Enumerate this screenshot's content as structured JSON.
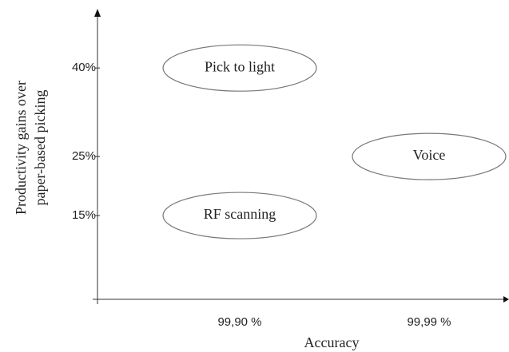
{
  "chart_data": {
    "type": "scatter",
    "x_label": "Accuracy",
    "y_label": [
      "Productivity gains over",
      "paper-based picking"
    ],
    "categories": [
      "99,90 %",
      "99,99 %"
    ],
    "points": [
      {
        "label": "Pick to light",
        "x": "99,90 %",
        "y": 40
      },
      {
        "label": "Voice",
        "x": "99,99 %",
        "y": 25
      },
      {
        "label": "RF scanning",
        "x": "99,90 %",
        "y": 15
      }
    ],
    "ylim": [
      0,
      48
    ],
    "yticks": [
      {
        "value": 15,
        "label": "15%"
      },
      {
        "value": 25,
        "label": "25%"
      },
      {
        "value": 40,
        "label": "40%"
      }
    ],
    "grid": false
  }
}
